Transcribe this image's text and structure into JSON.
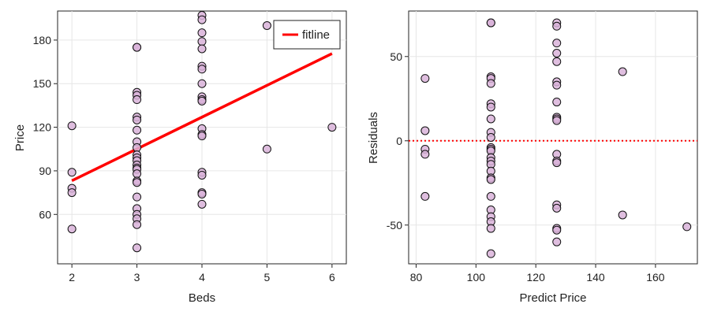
{
  "chart_data": [
    {
      "type": "scatter",
      "xlabel": "Beds",
      "ylabel": "Price",
      "xlim": [
        1.78,
        6.22
      ],
      "ylim": [
        26,
        200
      ],
      "xticks": [
        2,
        3,
        4,
        5,
        6
      ],
      "xtick_labels": [
        "2",
        "3",
        "4",
        "5",
        "6"
      ],
      "yticks": [
        60,
        90,
        120,
        150,
        180
      ],
      "ytick_labels": [
        "60",
        "90",
        "120",
        "150",
        "180"
      ],
      "grid": true,
      "legend_position": "top-right",
      "legend": [
        "fitline"
      ],
      "points_color": "#d9b3d9",
      "fit_color": "#ff0000",
      "points": [
        [
          2,
          121
        ],
        [
          2,
          89
        ],
        [
          2,
          78
        ],
        [
          2,
          75
        ],
        [
          2,
          50
        ],
        [
          3,
          175
        ],
        [
          3,
          175
        ],
        [
          3,
          144
        ],
        [
          3,
          142
        ],
        [
          3,
          139
        ],
        [
          3,
          127
        ],
        [
          3,
          125
        ],
        [
          3,
          118
        ],
        [
          3,
          110
        ],
        [
          3,
          106
        ],
        [
          3,
          101
        ],
        [
          3,
          99
        ],
        [
          3,
          97
        ],
        [
          3,
          94
        ],
        [
          3,
          92
        ],
        [
          3,
          91
        ],
        [
          3,
          88
        ],
        [
          3,
          83
        ],
        [
          3,
          82
        ],
        [
          3,
          72
        ],
        [
          3,
          64
        ],
        [
          3,
          60
        ],
        [
          3,
          57
        ],
        [
          3,
          53
        ],
        [
          3,
          37
        ],
        [
          4,
          197
        ],
        [
          4,
          194
        ],
        [
          4,
          185
        ],
        [
          4,
          179
        ],
        [
          4,
          174
        ],
        [
          4,
          162
        ],
        [
          4,
          160
        ],
        [
          4,
          150
        ],
        [
          4,
          141
        ],
        [
          4,
          139
        ],
        [
          4,
          138
        ],
        [
          4,
          119
        ],
        [
          4,
          115
        ],
        [
          4,
          114
        ],
        [
          4,
          89
        ],
        [
          4,
          87
        ],
        [
          4,
          75
        ],
        [
          4,
          74
        ],
        [
          4,
          67
        ],
        [
          5,
          190
        ],
        [
          5,
          105
        ],
        [
          6,
          120
        ]
      ],
      "series": [
        {
          "name": "fitline",
          "x": [
            2,
            6
          ],
          "y": [
            83.2,
            170.7
          ]
        }
      ]
    },
    {
      "type": "scatter",
      "xlabel": "Predict Price",
      "ylabel": "Residuals",
      "xlim": [
        77.5,
        174
      ],
      "ylim": [
        -73,
        77
      ],
      "xticks": [
        80,
        100,
        120,
        140,
        160
      ],
      "xtick_labels": [
        "80",
        "100",
        "120",
        "140",
        "160"
      ],
      "yticks": [
        -50,
        0,
        50
      ],
      "ytick_labels": [
        "-50",
        "0",
        "50"
      ],
      "grid": true,
      "zero_line_color": "#ff0000",
      "points_color": "#d9b3d9",
      "points": [
        [
          83,
          37
        ],
        [
          83,
          6
        ],
        [
          83,
          -5
        ],
        [
          83,
          -8
        ],
        [
          83,
          -33
        ],
        [
          105,
          70
        ],
        [
          105,
          70
        ],
        [
          105,
          38
        ],
        [
          105,
          37
        ],
        [
          105,
          34
        ],
        [
          105,
          22
        ],
        [
          105,
          20
        ],
        [
          105,
          13
        ],
        [
          105,
          5
        ],
        [
          105,
          2
        ],
        [
          105,
          -4
        ],
        [
          105,
          -5
        ],
        [
          105,
          -6
        ],
        [
          105,
          -10
        ],
        [
          105,
          -12
        ],
        [
          105,
          -14
        ],
        [
          105,
          -18
        ],
        [
          105,
          -22
        ],
        [
          105,
          -23
        ],
        [
          105,
          -33
        ],
        [
          105,
          -41
        ],
        [
          105,
          -45
        ],
        [
          105,
          -48
        ],
        [
          105,
          -52
        ],
        [
          105,
          -67
        ],
        [
          127,
          70
        ],
        [
          127,
          68
        ],
        [
          127,
          58
        ],
        [
          127,
          52
        ],
        [
          127,
          47
        ],
        [
          127,
          35
        ],
        [
          127,
          33
        ],
        [
          127,
          23
        ],
        [
          127,
          14
        ],
        [
          127,
          13
        ],
        [
          127,
          12
        ],
        [
          127,
          -8
        ],
        [
          127,
          -12
        ],
        [
          127,
          -13
        ],
        [
          127,
          -38
        ],
        [
          127,
          -40
        ],
        [
          127,
          -52
        ],
        [
          127,
          -53
        ],
        [
          127,
          -60
        ],
        [
          149,
          41
        ],
        [
          149,
          -44
        ],
        [
          170.5,
          -51
        ]
      ]
    }
  ]
}
